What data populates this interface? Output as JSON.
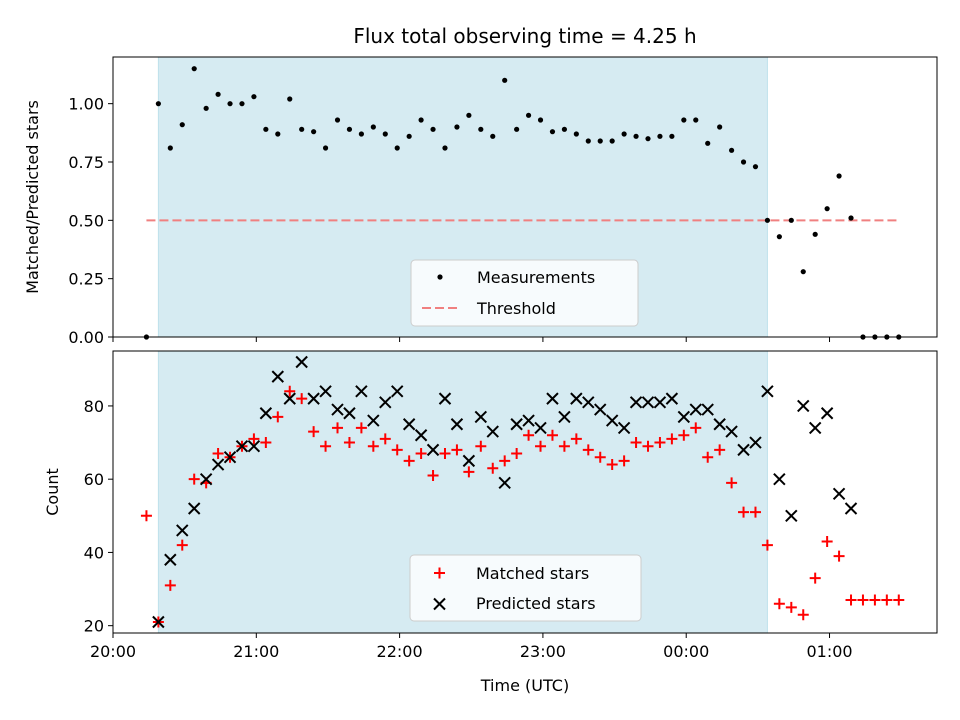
{
  "chart_data": [
    {
      "type": "scatter",
      "title": "Flux total observing time = 4.25 h",
      "xlabel": "",
      "ylabel": "Matched/Predicted stars",
      "ylim": [
        0,
        1.2
      ],
      "yticks": [
        "0.00",
        "0.25",
        "0.50",
        "0.75",
        "1.00"
      ],
      "shaded_region": {
        "start": "20:19",
        "end": "00:34",
        "color": "#add8e6"
      },
      "legend": {
        "position": "lower-center",
        "entries": [
          "Measurements",
          "Threshold"
        ]
      },
      "threshold": {
        "name": "Threshold",
        "value": 0.5,
        "color": "#f08080",
        "x_start": "20:14",
        "x_end": "01:29"
      },
      "series": [
        {
          "name": "Measurements",
          "color": "#000000",
          "x": [
            "20:14",
            "20:19",
            "20:24",
            "20:29",
            "20:34",
            "20:39",
            "20:44",
            "20:49",
            "20:54",
            "20:59",
            "21:04",
            "21:09",
            "21:14",
            "21:19",
            "21:24",
            "21:29",
            "21:34",
            "21:39",
            "21:44",
            "21:49",
            "21:54",
            "21:59",
            "22:04",
            "22:09",
            "22:14",
            "22:19",
            "22:24",
            "22:29",
            "22:34",
            "22:39",
            "22:44",
            "22:49",
            "22:54",
            "22:59",
            "23:04",
            "23:09",
            "23:14",
            "23:19",
            "23:24",
            "23:29",
            "23:34",
            "23:39",
            "23:44",
            "23:49",
            "23:54",
            "23:59",
            "00:04",
            "00:09",
            "00:14",
            "00:19",
            "00:24",
            "00:29",
            "00:34",
            "00:39",
            "00:44",
            "00:49",
            "00:54",
            "00:59",
            "01:04",
            "01:09",
            "01:14",
            "01:19",
            "01:24",
            "01:29"
          ],
          "y": [
            0.0,
            1.0,
            0.81,
            0.91,
            1.15,
            0.98,
            1.04,
            1.0,
            1.0,
            1.03,
            0.89,
            0.87,
            1.02,
            0.89,
            0.88,
            0.81,
            0.93,
            0.89,
            0.87,
            0.9,
            0.87,
            0.81,
            0.86,
            0.93,
            0.89,
            0.81,
            0.9,
            0.95,
            0.89,
            0.86,
            1.1,
            0.89,
            0.95,
            0.93,
            0.88,
            0.89,
            0.87,
            0.84,
            0.84,
            0.84,
            0.87,
            0.86,
            0.85,
            0.86,
            0.86,
            0.93,
            0.93,
            0.83,
            0.9,
            0.8,
            0.75,
            0.73,
            0.5,
            0.43,
            0.5,
            0.28,
            0.44,
            0.55,
            0.69,
            0.51,
            0.0,
            0.0,
            0.0,
            0.0
          ]
        }
      ]
    },
    {
      "type": "scatter",
      "title": "",
      "xlabel": "Time (UTC)",
      "ylabel": "Count",
      "ylim": [
        18,
        95
      ],
      "yticks": [
        "20",
        "40",
        "60",
        "80"
      ],
      "xlim": [
        "20:00",
        "01:45"
      ],
      "xticks": [
        "20:00",
        "21:00",
        "22:00",
        "23:00",
        "00:00",
        "01:00"
      ],
      "shaded_region": {
        "start": "20:19",
        "end": "00:34",
        "color": "#add8e6"
      },
      "legend": {
        "position": "lower-center",
        "entries": [
          "Matched stars",
          "Predicted stars"
        ]
      },
      "series": [
        {
          "name": "Matched stars",
          "marker": "+",
          "color": "#ff0000",
          "x": [
            "20:14",
            "20:19",
            "20:24",
            "20:29",
            "20:34",
            "20:39",
            "20:44",
            "20:49",
            "20:54",
            "20:59",
            "21:04",
            "21:09",
            "21:14",
            "21:19",
            "21:24",
            "21:29",
            "21:34",
            "21:39",
            "21:44",
            "21:49",
            "21:54",
            "21:59",
            "22:04",
            "22:09",
            "22:14",
            "22:19",
            "22:24",
            "22:29",
            "22:34",
            "22:39",
            "22:44",
            "22:49",
            "22:54",
            "22:59",
            "23:04",
            "23:09",
            "23:14",
            "23:19",
            "23:24",
            "23:29",
            "23:34",
            "23:39",
            "23:44",
            "23:49",
            "23:54",
            "23:59",
            "00:04",
            "00:09",
            "00:14",
            "00:19",
            "00:24",
            "00:29",
            "00:34",
            "00:39",
            "00:44",
            "00:49",
            "00:54",
            "00:59",
            "01:04",
            "01:09",
            "01:14",
            "01:19",
            "01:24",
            "01:29"
          ],
          "y": [
            50,
            21,
            31,
            42,
            60,
            59,
            67,
            66,
            69,
            71,
            70,
            77,
            84,
            82,
            73,
            69,
            74,
            70,
            74,
            69,
            71,
            68,
            65,
            67,
            61,
            67,
            68,
            62,
            69,
            63,
            65,
            67,
            72,
            69,
            72,
            69,
            71,
            68,
            66,
            64,
            65,
            70,
            69,
            70,
            71,
            72,
            74,
            66,
            68,
            59,
            51,
            51,
            42,
            26,
            25,
            23,
            33,
            43,
            39,
            27,
            27,
            27,
            27,
            27
          ]
        },
        {
          "name": "Predicted stars",
          "marker": "x",
          "color": "#000000",
          "x": [
            "20:19",
            "20:24",
            "20:29",
            "20:34",
            "20:39",
            "20:44",
            "20:49",
            "20:54",
            "20:59",
            "21:04",
            "21:09",
            "21:14",
            "21:19",
            "21:24",
            "21:29",
            "21:34",
            "21:39",
            "21:44",
            "21:49",
            "21:54",
            "21:59",
            "22:04",
            "22:09",
            "22:14",
            "22:19",
            "22:24",
            "22:29",
            "22:34",
            "22:39",
            "22:44",
            "22:49",
            "22:54",
            "22:59",
            "23:04",
            "23:09",
            "23:14",
            "23:19",
            "23:24",
            "23:29",
            "23:34",
            "23:39",
            "23:44",
            "23:49",
            "23:54",
            "23:59",
            "00:04",
            "00:09",
            "00:14",
            "00:19",
            "00:24",
            "00:29",
            "00:34",
            "00:39",
            "00:44",
            "00:49",
            "00:54",
            "00:59",
            "01:04",
            "01:09"
          ],
          "y": [
            21,
            38,
            46,
            52,
            60,
            64,
            66,
            69,
            69,
            78,
            88,
            82,
            92,
            82,
            84,
            79,
            78,
            84,
            76,
            81,
            84,
            75,
            72,
            68,
            82,
            75,
            65,
            77,
            73,
            59,
            75,
            76,
            74,
            82,
            77,
            82,
            81,
            79,
            76,
            74,
            81,
            81,
            81,
            82,
            77,
            79,
            79,
            75,
            73,
            68,
            70,
            84,
            60,
            50,
            80,
            74,
            78,
            56,
            52
          ]
        }
      ]
    }
  ]
}
